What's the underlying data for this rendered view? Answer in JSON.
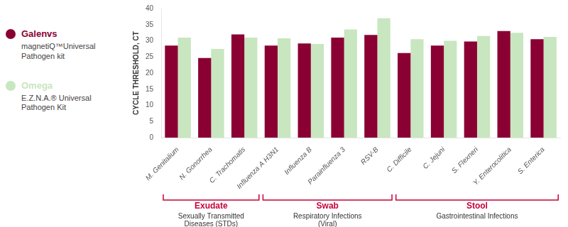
{
  "chart_data": {
    "type": "bar",
    "categories": [
      "M. Genitalium",
      "N. Gonorrhea",
      "C. Trachomatis",
      "Influenza A H3N1",
      "Influenza B",
      "Parainfluenza 3",
      "RSV-B",
      "C. Difficile",
      "C. Jejuni",
      "S. Flexneri",
      "Y. Enterocolitica",
      "S. Enterica"
    ],
    "series": [
      {
        "name": "Galenvs",
        "description": "magnetiQ™Universal\nPathogen kit",
        "color": "#8B0033",
        "values": [
          28.5,
          24.7,
          32.0,
          28.5,
          29.2,
          31.0,
          31.8,
          26.2,
          28.5,
          29.8,
          33.0,
          30.5
        ]
      },
      {
        "name": "Omega",
        "description": "E.Z.N.A.® Universal\nPathogen Kit",
        "color": "#C8E6C0",
        "values": [
          31.0,
          27.5,
          31.0,
          30.8,
          29.0,
          33.5,
          37.0,
          30.5,
          30.0,
          31.5,
          32.5,
          31.2
        ]
      }
    ],
    "ylabel": "CYCLE THRESHOLD, CT",
    "ylim": [
      0,
      40
    ],
    "yticks": [
      0,
      5,
      10,
      15,
      20,
      25,
      30,
      35,
      40
    ],
    "grid": false,
    "legend": "left",
    "groups": [
      {
        "label": "Exudate",
        "sublabel": "Sexually Transmitted\nDiseases (STDs)",
        "from": "M. Genitalium",
        "to": "C. Trachomatis",
        "color": "#C8003A"
      },
      {
        "label": "Swab",
        "sublabel": "Respiratory Infections\n(Viral)",
        "from": "Influenza A H3N1",
        "to": "RSV-B",
        "color": "#C8003A"
      },
      {
        "label": "Stool",
        "sublabel": "Gastrointestinal Infections",
        "from": "C. Difficile",
        "to": "S. Enterica",
        "color": "#C8003A"
      }
    ]
  }
}
